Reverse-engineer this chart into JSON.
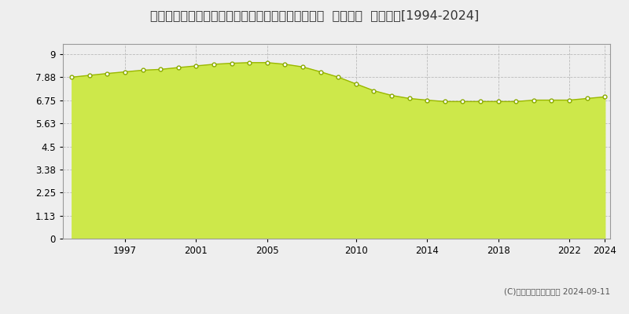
{
  "title": "山形県東置賜郡高畠町大字福沢字鎌塚台１５０番６  地価公示  地価推移[1994-2024]",
  "years": [
    1994,
    1995,
    1996,
    1997,
    1998,
    1999,
    2000,
    2001,
    2002,
    2003,
    2004,
    2005,
    2006,
    2007,
    2008,
    2009,
    2010,
    2011,
    2012,
    2013,
    2014,
    2015,
    2016,
    2017,
    2018,
    2019,
    2020,
    2021,
    2022,
    2023,
    2024
  ],
  "values": [
    7.88,
    7.97,
    8.06,
    8.14,
    8.22,
    8.26,
    8.35,
    8.43,
    8.51,
    8.56,
    8.59,
    8.59,
    8.51,
    8.38,
    8.14,
    7.88,
    7.55,
    7.22,
    6.99,
    6.84,
    6.76,
    6.69,
    6.69,
    6.69,
    6.69,
    6.69,
    6.76,
    6.76,
    6.76,
    6.84,
    6.92
  ],
  "yticks": [
    0,
    1.13,
    2.25,
    3.38,
    4.5,
    5.63,
    6.75,
    7.88,
    9
  ],
  "ylim": [
    0,
    9.5
  ],
  "fill_color": "#cde84a",
  "fill_alpha": 1.0,
  "line_color": "#9ab800",
  "marker_facecolor": "#ffffff",
  "marker_edgecolor": "#8aaa00",
  "grid_color": "#bbbbbb",
  "bg_color": "#eeeeee",
  "plot_bg_color": "#eeeeee",
  "title_fontsize": 11.5,
  "copyright_text": "(C)土地価格ドットコム 2024-09-11",
  "xtick_years": [
    1997,
    2001,
    2005,
    2010,
    2014,
    2018,
    2022,
    2024
  ]
}
